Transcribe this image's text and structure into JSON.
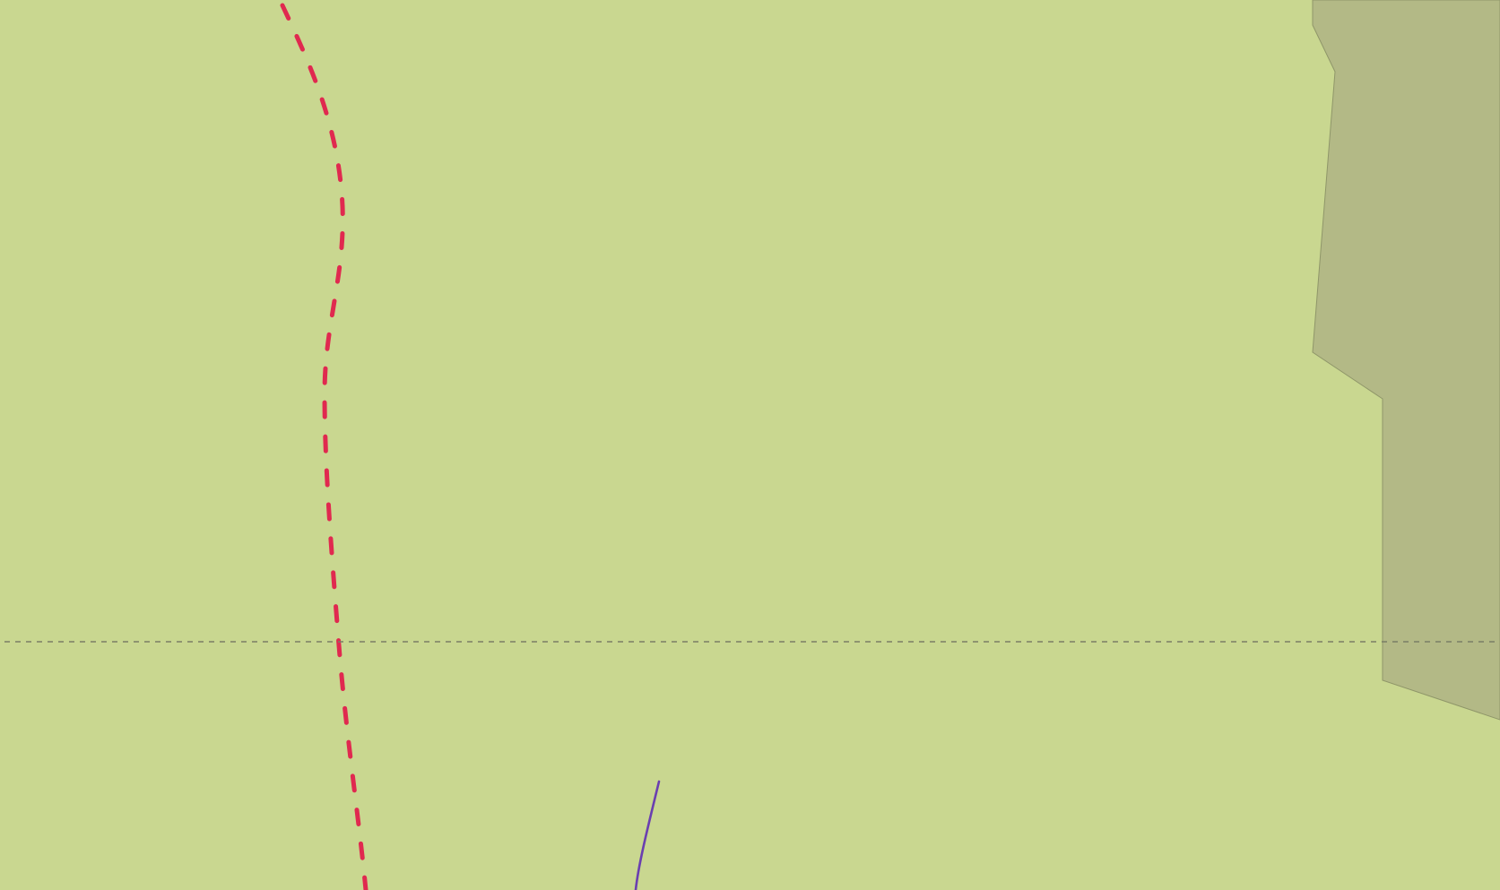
{
  "map": {
    "colors": {
      "land": "#c9d790",
      "protected_area": "#b3b986",
      "protected_area_border": "#8f9669",
      "boundary_line": "#e0294f",
      "parallel_line": "#7a7f66",
      "river": "#6a3fb0"
    },
    "features": [
      {
        "kind": "protected-area",
        "name": ""
      },
      {
        "kind": "dashed-boundary",
        "name": ""
      },
      {
        "kind": "latitude-parallel",
        "name": ""
      },
      {
        "kind": "river",
        "name": ""
      }
    ]
  }
}
